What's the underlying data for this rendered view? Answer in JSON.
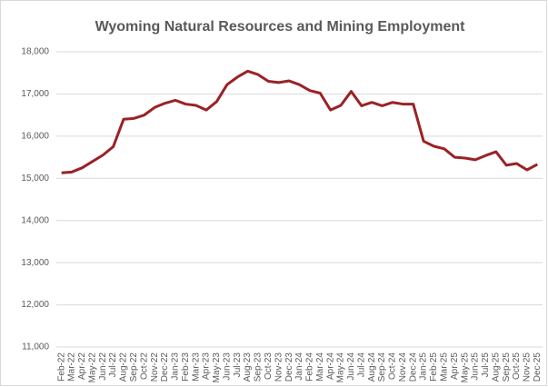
{
  "chart_data": {
    "type": "line",
    "title": "Wyoming Natural Resources and Mining Employment",
    "categories": [
      "Feb-22",
      "Mar-22",
      "Apr-22",
      "May-22",
      "Jun-22",
      "Jul-22",
      "Aug-22",
      "Sep-22",
      "Oct-22",
      "Nov-22",
      "Dec-22",
      "Jan-23",
      "Feb-23",
      "Mar-23",
      "Apr-23",
      "May-23",
      "Jun-23",
      "Jul-23",
      "Aug-23",
      "Sep-23",
      "Oct-23",
      "Nov-23",
      "Dec-23",
      "Jan-24",
      "Feb-24",
      "Mar-24",
      "Apr-24",
      "May-24",
      "Jun-24",
      "Jul-24",
      "Aug-24",
      "Sep-24",
      "Oct-24",
      "Nov-24",
      "Dec-24",
      "Jan-25",
      "Feb-25",
      "Mar-25",
      "Apr-25",
      "May-25",
      "Jun-25",
      "Jul-25",
      "Aug-25",
      "Sep-25",
      "Oct-25",
      "Nov-25",
      "Dec-25"
    ],
    "series": [
      {
        "name": "Employment",
        "color": "#9b2226",
        "values": [
          15130,
          15150,
          15250,
          15400,
          15550,
          15750,
          16400,
          16420,
          16500,
          16680,
          16780,
          16850,
          16760,
          16730,
          16620,
          16820,
          17220,
          17400,
          17540,
          17460,
          17300,
          17270,
          17310,
          17220,
          17080,
          17020,
          16620,
          16730,
          17060,
          16720,
          16800,
          16720,
          16800,
          16760,
          16760,
          15880,
          15760,
          15700,
          15500,
          15480,
          15440,
          15540,
          15630,
          15310,
          15350,
          15200,
          15330
        ]
      }
    ],
    "ylim": [
      11000,
      18000
    ],
    "yticks": [
      {
        "value": 11000,
        "label": "11,000"
      },
      {
        "value": 12000,
        "label": "12,000"
      },
      {
        "value": 13000,
        "label": "13,000"
      },
      {
        "value": 14000,
        "label": "14,000"
      },
      {
        "value": 15000,
        "label": "15,000"
      },
      {
        "value": 16000,
        "label": "16,000"
      },
      {
        "value": 17000,
        "label": "17,000"
      },
      {
        "value": 18000,
        "label": "18,000"
      }
    ],
    "grid": true
  }
}
